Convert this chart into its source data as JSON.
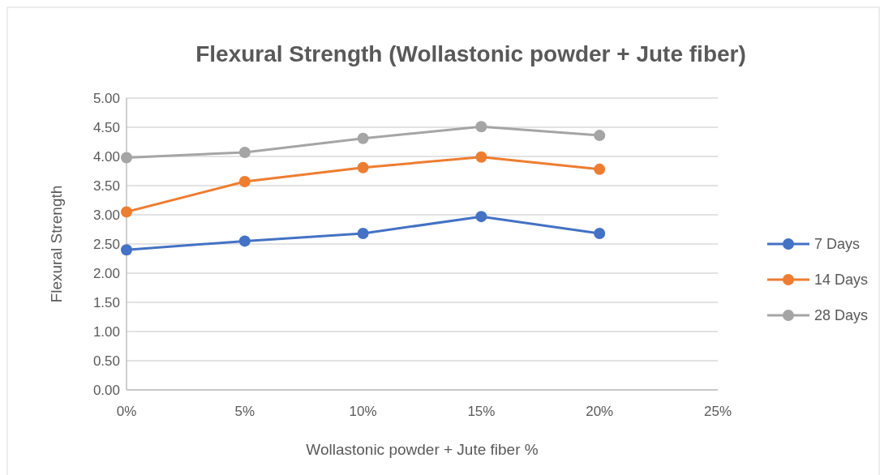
{
  "chart_data": {
    "type": "line",
    "title": "Flexural Strength (Wollastonic powder + Jute fiber)",
    "xlabel": "Wollastonic powder + Jute fiber %",
    "ylabel": "Flexural Strength",
    "x": [
      0,
      5,
      10,
      15,
      20
    ],
    "xlim": [
      0,
      25
    ],
    "xticks": [
      {
        "value": 0,
        "label": "0%"
      },
      {
        "value": 5,
        "label": "5%"
      },
      {
        "value": 10,
        "label": "10%"
      },
      {
        "value": 15,
        "label": "15%"
      },
      {
        "value": 20,
        "label": "20%"
      },
      {
        "value": 25,
        "label": "25%"
      }
    ],
    "ylim": [
      0,
      5
    ],
    "yticks": [
      {
        "value": 0,
        "label": "0.00"
      },
      {
        "value": 0.5,
        "label": "0.50"
      },
      {
        "value": 1,
        "label": "1.00"
      },
      {
        "value": 1.5,
        "label": "1.50"
      },
      {
        "value": 2,
        "label": "2.00"
      },
      {
        "value": 2.5,
        "label": "2.50"
      },
      {
        "value": 3,
        "label": "3.00"
      },
      {
        "value": 3.5,
        "label": "3.50"
      },
      {
        "value": 4,
        "label": "4.00"
      },
      {
        "value": 4.5,
        "label": "4.50"
      },
      {
        "value": 5,
        "label": "5.00"
      }
    ],
    "grid": "y",
    "legend": "right",
    "marker": "circle",
    "line_style": "solid",
    "series": [
      {
        "name": "7 Days",
        "color": "#4472c4",
        "values": [
          2.4,
          2.55,
          2.68,
          2.97,
          2.68
        ]
      },
      {
        "name": "14 Days",
        "color": "#ed7d31",
        "values": [
          3.05,
          3.57,
          3.81,
          3.99,
          3.78
        ]
      },
      {
        "name": "28 Days",
        "color": "#a5a5a5",
        "values": [
          3.98,
          4.07,
          4.31,
          4.51,
          4.36
        ]
      }
    ]
  }
}
